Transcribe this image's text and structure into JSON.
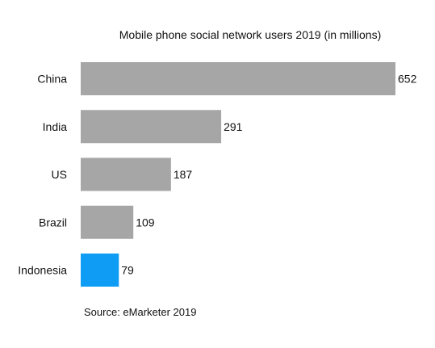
{
  "chart_data": {
    "type": "bar",
    "orientation": "horizontal",
    "title": "Mobile phone social network users 2019 (in millions)",
    "categories": [
      "China",
      "India",
      "US",
      "Brazil",
      "Indonesia"
    ],
    "values": [
      652,
      291,
      187,
      109,
      79
    ],
    "value_labels": [
      "652",
      "291",
      "187",
      "109",
      "79"
    ],
    "highlight_category": "Indonesia",
    "xlim": [
      0,
      652
    ],
    "grid": false,
    "legend": "none",
    "bar_color": "#a6a6a6",
    "highlight_color": "#0f9cf5"
  },
  "source": "Source: eMarketer 2019"
}
